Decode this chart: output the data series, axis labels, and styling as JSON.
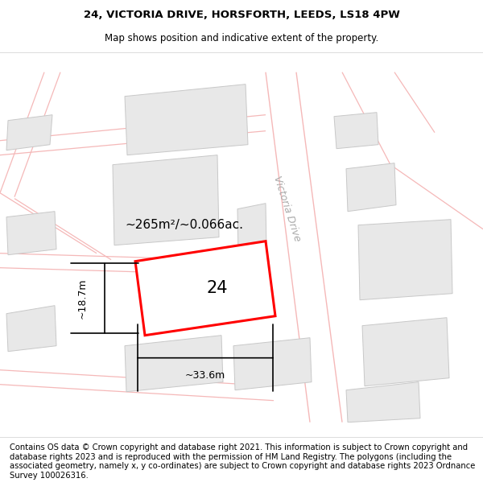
{
  "title": "24, VICTORIA DRIVE, HORSFORTH, LEEDS, LS18 4PW",
  "subtitle": "Map shows position and indicative extent of the property.",
  "footer": "Contains OS data © Crown copyright and database right 2021. This information is subject to Crown copyright and database rights 2023 and is reproduced with the permission of HM Land Registry. The polygons (including the associated geometry, namely x, y co-ordinates) are subject to Crown copyright and database rights 2023 Ordnance Survey 100026316.",
  "area_text": "~265m²/~0.066ac.",
  "width_text": "~33.6m",
  "height_text": "~18.7m",
  "number_text": "24",
  "road_label": "Victoria Drive",
  "bg_color": "#ffffff",
  "building_fill": "#e8e8e8",
  "building_edge": "#c8c8c8",
  "road_line_color": "#f5b8b8",
  "highlight_color": "#ff0000",
  "title_fontsize": 9.5,
  "subtitle_fontsize": 8.5,
  "footer_fontsize": 7.2,
  "annotation_fontsize": 11,
  "measure_fontsize": 9
}
